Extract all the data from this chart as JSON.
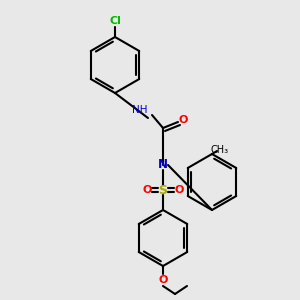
{
  "bg_color": "#e8e8e8",
  "bond_color": "#000000",
  "colors": {
    "N": "#0000cc",
    "O": "#ff0000",
    "Cl": "#00bb00",
    "S": "#aaaa00",
    "H": "#4a8a8a",
    "C": "#000000"
  },
  "lw": 1.5,
  "lw2": 2.5
}
